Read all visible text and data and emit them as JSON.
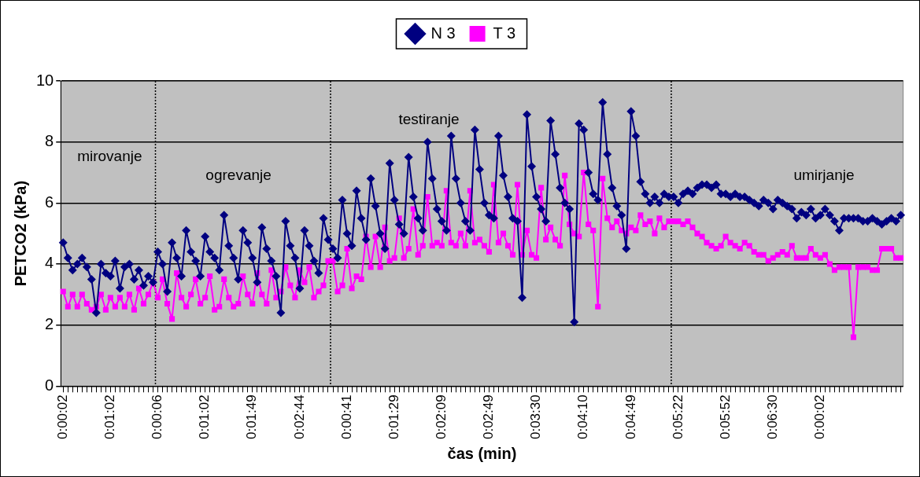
{
  "chart_data": {
    "type": "line",
    "xlabel": "čas (min)",
    "ylabel": "PETCO2 (kPa)",
    "categories": [
      "0:00:02",
      null,
      null,
      null,
      null,
      null,
      null,
      null,
      null,
      null,
      "0:01:02",
      null,
      null,
      null,
      null,
      null,
      null,
      null,
      null,
      null,
      "0:00:06",
      null,
      null,
      null,
      null,
      null,
      null,
      null,
      null,
      null,
      "0:01:02",
      null,
      null,
      null,
      null,
      null,
      null,
      null,
      null,
      null,
      "0:01:49",
      null,
      null,
      null,
      null,
      null,
      null,
      null,
      null,
      null,
      "0:02:44",
      null,
      null,
      null,
      null,
      null,
      null,
      null,
      null,
      null,
      "0:00:41",
      null,
      null,
      null,
      null,
      null,
      null,
      null,
      null,
      null,
      "0:01:29",
      null,
      null,
      null,
      null,
      null,
      null,
      null,
      null,
      null,
      "0:02:09",
      null,
      null,
      null,
      null,
      null,
      null,
      null,
      null,
      null,
      "0:02:49",
      null,
      null,
      null,
      null,
      null,
      null,
      null,
      null,
      null,
      "0:03:30",
      null,
      null,
      null,
      null,
      null,
      null,
      null,
      null,
      null,
      "0:04:10",
      null,
      null,
      null,
      null,
      null,
      null,
      null,
      null,
      null,
      "0:04:49",
      null,
      null,
      null,
      null,
      null,
      null,
      null,
      null,
      null,
      "0:05:22",
      null,
      null,
      null,
      null,
      null,
      null,
      null,
      null,
      null,
      "0:05:52",
      null,
      null,
      null,
      null,
      null,
      null,
      null,
      null,
      null,
      "0:06:30",
      null,
      null,
      null,
      null,
      null,
      null,
      null,
      null,
      null,
      "0:00:02",
      null,
      null,
      null,
      null,
      null,
      null,
      null,
      null,
      null,
      null,
      null,
      null,
      null,
      null,
      null,
      null,
      null
    ],
    "series": [
      {
        "name": "N 3",
        "color": "#000080",
        "marker": "diamond",
        "values": [
          4.7,
          4.2,
          3.8,
          4.0,
          4.2,
          3.9,
          3.5,
          2.4,
          4.0,
          3.7,
          3.6,
          4.1,
          3.2,
          3.9,
          4.0,
          3.5,
          3.8,
          3.3,
          3.6,
          3.4,
          4.4,
          4.0,
          3.1,
          4.7,
          4.2,
          3.6,
          5.1,
          4.4,
          4.1,
          3.6,
          4.9,
          4.4,
          4.2,
          3.8,
          5.6,
          4.6,
          4.2,
          3.5,
          5.1,
          4.7,
          4.2,
          3.4,
          5.2,
          4.5,
          4.1,
          3.6,
          2.4,
          5.4,
          4.6,
          4.2,
          3.2,
          5.1,
          4.6,
          4.1,
          3.7,
          5.5,
          4.8,
          4.5,
          4.2,
          6.1,
          5.0,
          4.6,
          6.4,
          5.5,
          4.8,
          6.8,
          5.9,
          5.0,
          4.5,
          7.3,
          6.1,
          5.3,
          5.0,
          7.5,
          6.2,
          5.5,
          5.1,
          8.0,
          6.8,
          5.8,
          5.4,
          5.1,
          8.2,
          6.8,
          6.0,
          5.4,
          5.1,
          8.4,
          7.1,
          6.0,
          5.6,
          5.5,
          8.2,
          6.9,
          6.2,
          5.5,
          5.4,
          2.9,
          8.9,
          7.2,
          6.2,
          5.8,
          5.4,
          8.7,
          7.6,
          6.5,
          6.0,
          5.8,
          2.1,
          8.6,
          8.4,
          7.0,
          6.3,
          6.1,
          9.3,
          7.6,
          6.5,
          5.9,
          5.6,
          4.5,
          9.0,
          8.2,
          6.7,
          6.3,
          6.0,
          6.2,
          6.0,
          6.3,
          6.2,
          6.2,
          6.0,
          6.3,
          6.4,
          6.3,
          6.5,
          6.6,
          6.6,
          6.5,
          6.6,
          6.3,
          6.3,
          6.2,
          6.3,
          6.2,
          6.2,
          6.1,
          6.0,
          5.9,
          6.1,
          6.0,
          5.8,
          6.1,
          6.0,
          5.9,
          5.8,
          5.5,
          5.7,
          5.6,
          5.8,
          5.5,
          5.6,
          5.8,
          5.6,
          5.4,
          5.1,
          5.5,
          5.5,
          5.5,
          5.5,
          5.4,
          5.4,
          5.5,
          5.4,
          5.3,
          5.4,
          5.5,
          5.4,
          5.6
        ]
      },
      {
        "name": "T 3",
        "color": "#ff00ff",
        "marker": "square",
        "values": [
          3.1,
          2.6,
          3.0,
          2.6,
          3.0,
          2.7,
          2.5,
          2.6,
          3.0,
          2.5,
          2.9,
          2.6,
          2.9,
          2.6,
          3.0,
          2.5,
          3.2,
          2.7,
          3.0,
          3.4,
          2.9,
          3.5,
          2.7,
          2.2,
          3.7,
          2.9,
          2.6,
          3.0,
          3.5,
          2.7,
          2.9,
          3.6,
          2.5,
          2.6,
          3.5,
          2.9,
          2.6,
          2.7,
          3.6,
          3.0,
          2.7,
          3.7,
          3.0,
          2.7,
          3.8,
          2.9,
          3.1,
          3.9,
          3.3,
          2.9,
          3.8,
          3.4,
          3.9,
          2.9,
          3.1,
          3.3,
          4.1,
          4.1,
          3.1,
          3.3,
          4.5,
          3.2,
          3.6,
          3.5,
          4.9,
          3.9,
          4.9,
          3.9,
          5.2,
          4.1,
          4.2,
          5.5,
          4.2,
          4.5,
          5.8,
          4.3,
          4.6,
          6.2,
          4.6,
          4.7,
          4.6,
          6.4,
          4.7,
          4.6,
          5.0,
          4.6,
          6.4,
          4.7,
          4.8,
          4.6,
          4.4,
          6.6,
          4.7,
          5.0,
          4.6,
          4.3,
          6.6,
          4.3,
          5.1,
          4.3,
          4.2,
          6.5,
          4.8,
          5.2,
          4.8,
          4.6,
          6.9,
          5.3,
          5.0,
          4.9,
          7.0,
          5.3,
          5.1,
          2.6,
          6.8,
          5.5,
          5.2,
          5.4,
          5.1,
          5.0,
          5.2,
          5.1,
          5.6,
          5.3,
          5.4,
          5.0,
          5.5,
          5.2,
          5.4,
          5.4,
          5.4,
          5.3,
          5.4,
          5.2,
          5.0,
          4.9,
          4.7,
          4.6,
          4.5,
          4.6,
          4.9,
          4.7,
          4.6,
          4.5,
          4.7,
          4.6,
          4.4,
          4.3,
          4.3,
          4.1,
          4.2,
          4.3,
          4.4,
          4.3,
          4.6,
          4.2,
          4.2,
          4.2,
          4.5,
          4.3,
          4.2,
          4.3,
          4.0,
          3.8,
          3.9,
          3.9,
          3.9,
          1.6,
          3.9,
          3.9,
          3.9,
          3.8,
          3.8,
          4.5,
          4.5,
          4.5,
          4.2,
          4.2
        ]
      }
    ],
    "ylim": [
      0,
      10
    ],
    "yticks": [
      0,
      2,
      4,
      6,
      8,
      10
    ],
    "grid": "y",
    "legend": "top",
    "line_style": "solid",
    "annotations": [
      "mirovanje",
      "ogrevanje",
      "testiranje",
      "umirjanje"
    ]
  }
}
